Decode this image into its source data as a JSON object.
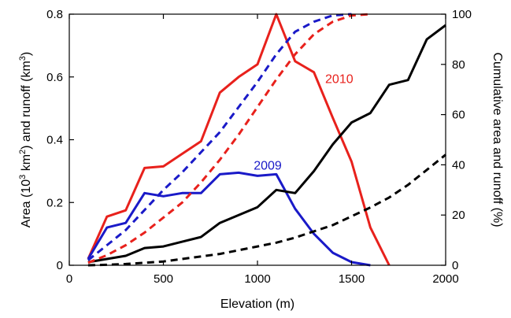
{
  "chart_data": {
    "type": "line",
    "xlabel": "Elevation (m)",
    "ylabel_left_parts": [
      "Area (10",
      "3",
      " km",
      "2",
      ") and runoff (km",
      "3",
      ")"
    ],
    "ylabel_right": "Cumulative area and runoff (%)",
    "xlim": [
      0,
      2000
    ],
    "ylim_left": [
      0,
      0.8
    ],
    "ylim_right": [
      0,
      100
    ],
    "x_ticks": [
      0,
      500,
      1000,
      1500,
      2000
    ],
    "x_tick_labels": [
      "0",
      "500",
      "1000",
      "1500",
      "2000"
    ],
    "y_left_ticks": [
      0,
      0.2,
      0.4,
      0.6,
      0.8
    ],
    "y_left_tick_labels": [
      "0",
      "0.2",
      "0.4",
      "0.6",
      "0.8"
    ],
    "y_right_ticks": [
      0,
      20,
      40,
      60,
      80,
      100
    ],
    "y_right_tick_labels": [
      "0",
      "20",
      "40",
      "60",
      "80",
      "100"
    ],
    "grid": false,
    "series": [
      {
        "key": "red-solid",
        "color": "#e8211c",
        "dash": "solid",
        "axis": "left",
        "x": [
          100,
          200,
          300,
          400,
          500,
          600,
          700,
          800,
          900,
          1000,
          1100,
          1200,
          1300,
          1400,
          1500,
          1600,
          1700
        ],
        "y": [
          0.02,
          0.155,
          0.175,
          0.31,
          0.315,
          0.355,
          0.395,
          0.55,
          0.6,
          0.64,
          0.8,
          0.65,
          0.615,
          0.47,
          0.33,
          0.12,
          0
        ]
      },
      {
        "key": "blue-solid",
        "color": "#1a1ac8",
        "dash": "solid",
        "axis": "left",
        "x": [
          100,
          200,
          300,
          400,
          500,
          600,
          700,
          800,
          900,
          1000,
          1100,
          1200,
          1300,
          1400,
          1500,
          1600
        ],
        "y": [
          0.02,
          0.12,
          0.135,
          0.23,
          0.22,
          0.23,
          0.23,
          0.29,
          0.295,
          0.285,
          0.29,
          0.18,
          0.1,
          0.04,
          0.01,
          0
        ]
      },
      {
        "key": "black-solid",
        "color": "#000000",
        "dash": "solid",
        "axis": "left",
        "x": [
          100,
          200,
          300,
          400,
          500,
          600,
          700,
          800,
          900,
          1000,
          1100,
          1200,
          1300,
          1400,
          1500,
          1600,
          1700,
          1800,
          1900,
          2000
        ],
        "y": [
          0.01,
          0.02,
          0.03,
          0.055,
          0.06,
          0.075,
          0.09,
          0.135,
          0.16,
          0.185,
          0.24,
          0.23,
          0.3,
          0.385,
          0.455,
          0.485,
          0.575,
          0.59,
          0.72,
          0.765
        ]
      },
      {
        "key": "blue-dashed",
        "color": "#1a1ac8",
        "dash": "dashed",
        "axis": "right",
        "x": [
          100,
          200,
          300,
          400,
          500,
          600,
          700,
          800,
          900,
          1000,
          1100,
          1200,
          1300,
          1400,
          1500
        ],
        "y": [
          2,
          8,
          14,
          22,
          30,
          37,
          45,
          53,
          63,
          73,
          84,
          93,
          97,
          99.5,
          100
        ]
      },
      {
        "key": "red-dashed",
        "color": "#e8211c",
        "dash": "dashed",
        "axis": "right",
        "x": [
          100,
          200,
          300,
          400,
          500,
          600,
          700,
          800,
          900,
          1000,
          1100,
          1200,
          1300,
          1400,
          1500,
          1600
        ],
        "y": [
          1,
          4,
          8,
          13,
          19,
          25,
          33,
          42,
          52,
          63,
          74,
          84,
          92,
          97,
          99.5,
          100
        ]
      },
      {
        "key": "black-dashed",
        "color": "#000000",
        "dash": "dashed",
        "axis": "right",
        "x": [
          100,
          200,
          300,
          400,
          500,
          600,
          700,
          800,
          900,
          1000,
          1100,
          1200,
          1300,
          1400,
          1500,
          1600,
          1700,
          1800,
          1900,
          2000
        ],
        "y": [
          0,
          0.2,
          0.5,
          1,
          1.5,
          2.5,
          3.5,
          4.5,
          6,
          7.5,
          9,
          11,
          13.5,
          16,
          19.5,
          23,
          27,
          32,
          38,
          44
        ]
      }
    ],
    "annotations": [
      {
        "text": "2010",
        "x": 1360,
        "y": 0.58,
        "color": "#e8211c"
      },
      {
        "text": "2009",
        "x": 980,
        "y": 0.305,
        "color": "#1a1ac8"
      }
    ]
  }
}
